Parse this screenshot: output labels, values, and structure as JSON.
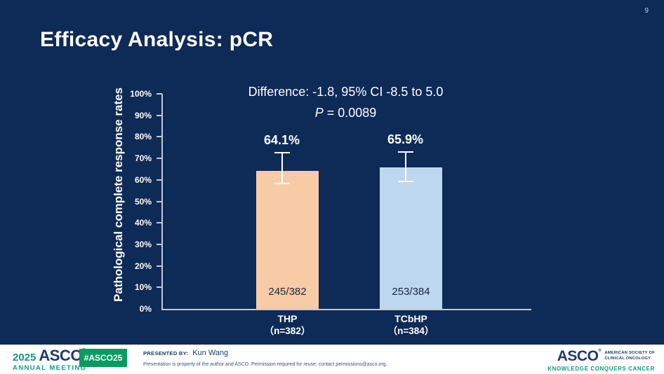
{
  "slide": {
    "page_number": "9",
    "title": "Efficacy Analysis: pCR"
  },
  "chart_data": {
    "type": "bar",
    "title": "",
    "xlabel": "",
    "ylabel": "Pathological complete response rates",
    "ylim": [
      0,
      100
    ],
    "ytick_step": 10,
    "ytick_suffix": "%",
    "grid": false,
    "legend": "none",
    "categories": [
      "THP",
      "TCbHP"
    ],
    "category_sublabels": [
      "（n=382）",
      "（n=384）"
    ],
    "series": [
      {
        "name": "Pathological complete response rate",
        "values": [
          64.1,
          65.9
        ]
      }
    ],
    "value_labels": [
      "64.1%",
      "65.9%"
    ],
    "fraction_labels": [
      "245/382",
      "253/384"
    ],
    "error_bars": [
      {
        "low": 58.4,
        "high": 72.5
      },
      {
        "low": 59.3,
        "high": 73.1
      }
    ],
    "bar_colors": [
      "#F6CBA6",
      "#BDD7EE"
    ],
    "annotation_line1": "Difference: -1.8, 95% CI -8.5 to 5.0",
    "annotation_p_label": "P",
    "annotation_p_rest": " = 0.0089"
  },
  "footer": {
    "meeting_logo": {
      "year": "2025",
      "brand": "ASCO",
      "reg": "®",
      "sub": "ANNUAL MEETING"
    },
    "hashtag": "#ASCO25",
    "presented_by_label": "PRESENTED BY:",
    "presenter": "Kun Wang",
    "disclaimer": "Presentation is property of the author and ASCO. Permission required for reuse; contact permissions@asco.org.",
    "asco_logo": {
      "brand": "ASCO",
      "reg": "®",
      "society_line1": "AMERICAN SOCIETY OF",
      "society_line2": "CLINICAL ONCOLOGY",
      "tagline": "KNOWLEDGE CONQUERS CANCER"
    }
  },
  "colors": {
    "background": "#0E2A56",
    "bar_thp": "#F6CBA6",
    "bar_tcbhp": "#BDD7EE",
    "axis": "#C2C9D3",
    "error_bar": "#FFFFFF",
    "badge_green": "#089B62",
    "teal": "#0F9B80",
    "footer_navy": "#1F3A6B"
  }
}
